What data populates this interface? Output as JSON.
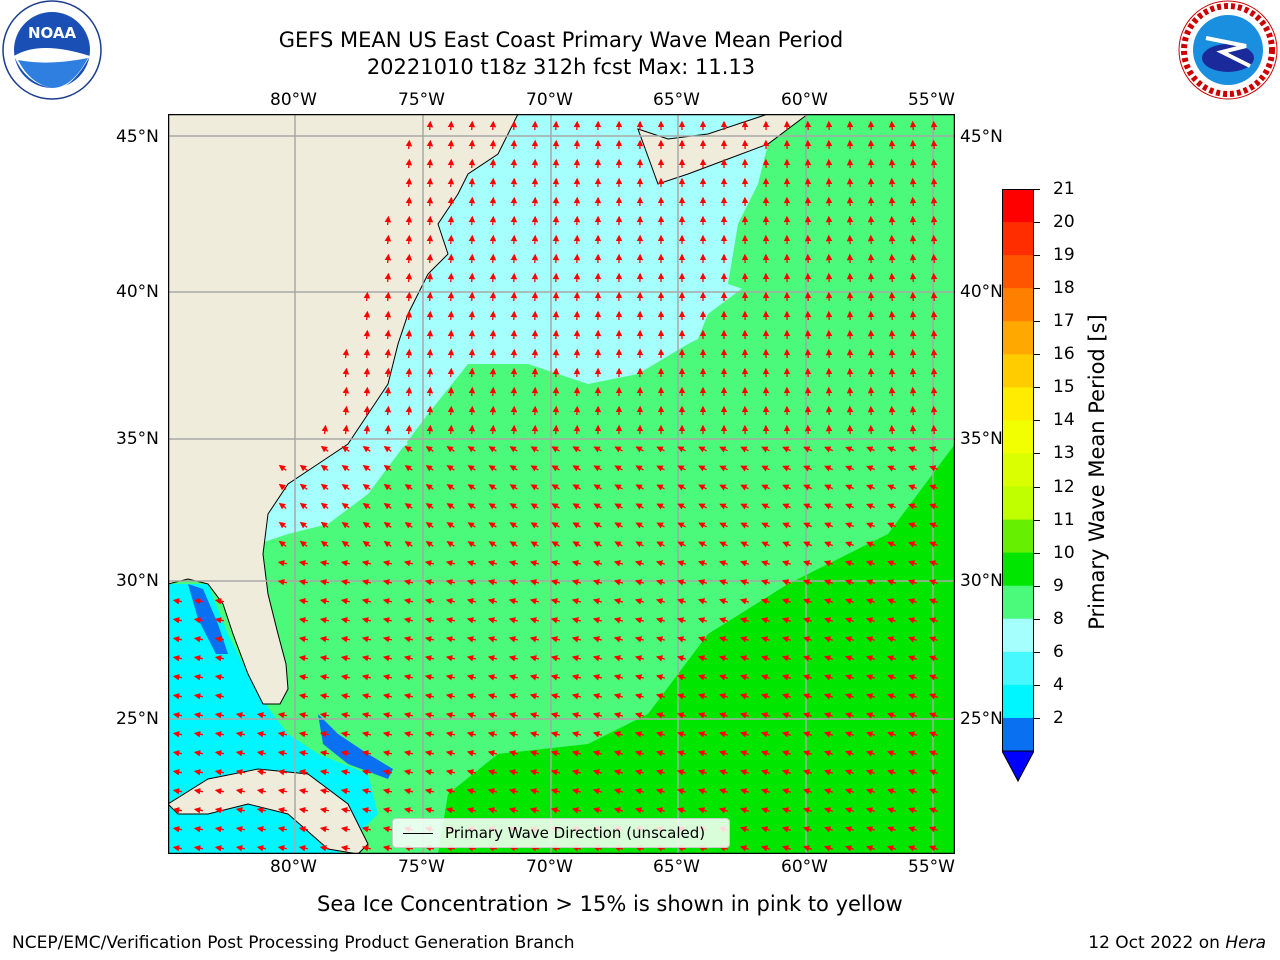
{
  "header": {
    "title_line1": "GEFS MEAN US East Coast Primary Wave Mean Period",
    "title_line2": "20221010 t18z 312h fcst   Max: 11.13"
  },
  "logos": {
    "left_text": "NOAA",
    "left_ring_text": "NATIONAL OCEANIC AND ATMOSPHERIC ADMINISTRATION · U.S. DEPARTMENT OF COMMERCE",
    "right_ring_text": "NATIONAL WEATHER SERVICE"
  },
  "map": {
    "lon_labels": [
      "80°W",
      "75°W",
      "70°W",
      "65°W",
      "60°W",
      "55°W"
    ],
    "lat_labels": [
      "45°N",
      "40°N",
      "35°N",
      "30°N",
      "25°N"
    ],
    "legend_label": "Primary Wave Direction (unscaled)",
    "colors": {
      "land": "#efecdc",
      "period_2_4": "#0a70f2",
      "period_4_6": "#00f6ff",
      "period_6_8": "#48f8ff",
      "period_8_9": "#a5fffd",
      "period_9_10": "#4bfa7a",
      "period_10_11": "#00e600",
      "arrow": "#ff0000"
    }
  },
  "colorbar": {
    "label": "Primary Wave Mean Period [s]",
    "ticks": [
      "21",
      "20",
      "19",
      "18",
      "17",
      "16",
      "15",
      "14",
      "13",
      "12",
      "11",
      "10",
      "9",
      "8",
      "6",
      "4",
      "2"
    ],
    "colors": [
      "#ff0000",
      "#ff2d00",
      "#ff5500",
      "#ff8000",
      "#ffa800",
      "#ffcc00",
      "#ffec00",
      "#f2ff00",
      "#d9ff00",
      "#bfff00",
      "#66f000",
      "#00e600",
      "#4bfa7a",
      "#a5fffd",
      "#48f8ff",
      "#00f6ff",
      "#0a70f2"
    ],
    "extend_color": "#0000ff"
  },
  "notes": {
    "ice_note": "Sea Ice Concentration > 15% is shown in pink to yellow"
  },
  "footer": {
    "left": "NCEP/EMC/Verification Post Processing Product Generation Branch",
    "right_prefix": "12 Oct 2022 on ",
    "right_machine": "Hera"
  }
}
